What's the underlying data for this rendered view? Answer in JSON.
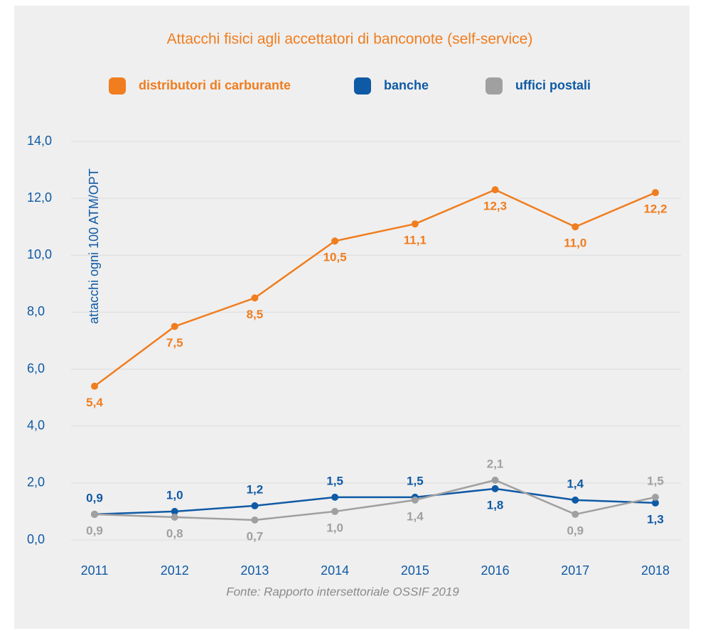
{
  "chart_data": {
    "type": "line",
    "title": "Attacchi fisici agli accettatori di banconote (self-service)",
    "ylabel": "attacchi ogni 100 ATM/OPT",
    "source": "Fonte: Rapporto intersettoriale OSSIF 2019",
    "categories": [
      "2011",
      "2012",
      "2013",
      "2014",
      "2015",
      "2016",
      "2017",
      "2018"
    ],
    "series": [
      {
        "name": "distributori di carburante",
        "color": "#f07d1e",
        "values": [
          5.4,
          7.5,
          8.5,
          10.5,
          11.1,
          12.3,
          11.0,
          12.2
        ],
        "value_labels": [
          "5,4",
          "7,5",
          "8,5",
          "10,5",
          "11,1",
          "12,3",
          "11,0",
          "12,2"
        ]
      },
      {
        "name": "banche",
        "color": "#0f5aa5",
        "values": [
          0.9,
          1.0,
          1.2,
          1.5,
          1.5,
          1.8,
          1.4,
          1.3
        ],
        "value_labels": [
          "0,9",
          "1,0",
          "1,2",
          "1,5",
          "1,5",
          "1,8",
          "1,4",
          "1,3"
        ]
      },
      {
        "name": "uffici postali",
        "color": "#a0a0a0",
        "values": [
          0.9,
          0.8,
          0.7,
          1.0,
          1.4,
          2.1,
          0.9,
          1.5
        ],
        "value_labels": [
          "0,9",
          "0,8",
          "0,7",
          "1,0",
          "1,4",
          "2,1",
          "0,9",
          "1,5"
        ]
      }
    ],
    "ylim": [
      0,
      14
    ],
    "yticks": [
      {
        "value": 0,
        "label": "0,0"
      },
      {
        "value": 2,
        "label": "2,0"
      },
      {
        "value": 4,
        "label": "4,0"
      },
      {
        "value": 6,
        "label": "6,0"
      },
      {
        "value": 8,
        "label": "8,0"
      },
      {
        "value": 10,
        "label": "10,0"
      },
      {
        "value": 12,
        "label": "12,0"
      },
      {
        "value": 14,
        "label": "14,0"
      }
    ],
    "grid": true
  }
}
